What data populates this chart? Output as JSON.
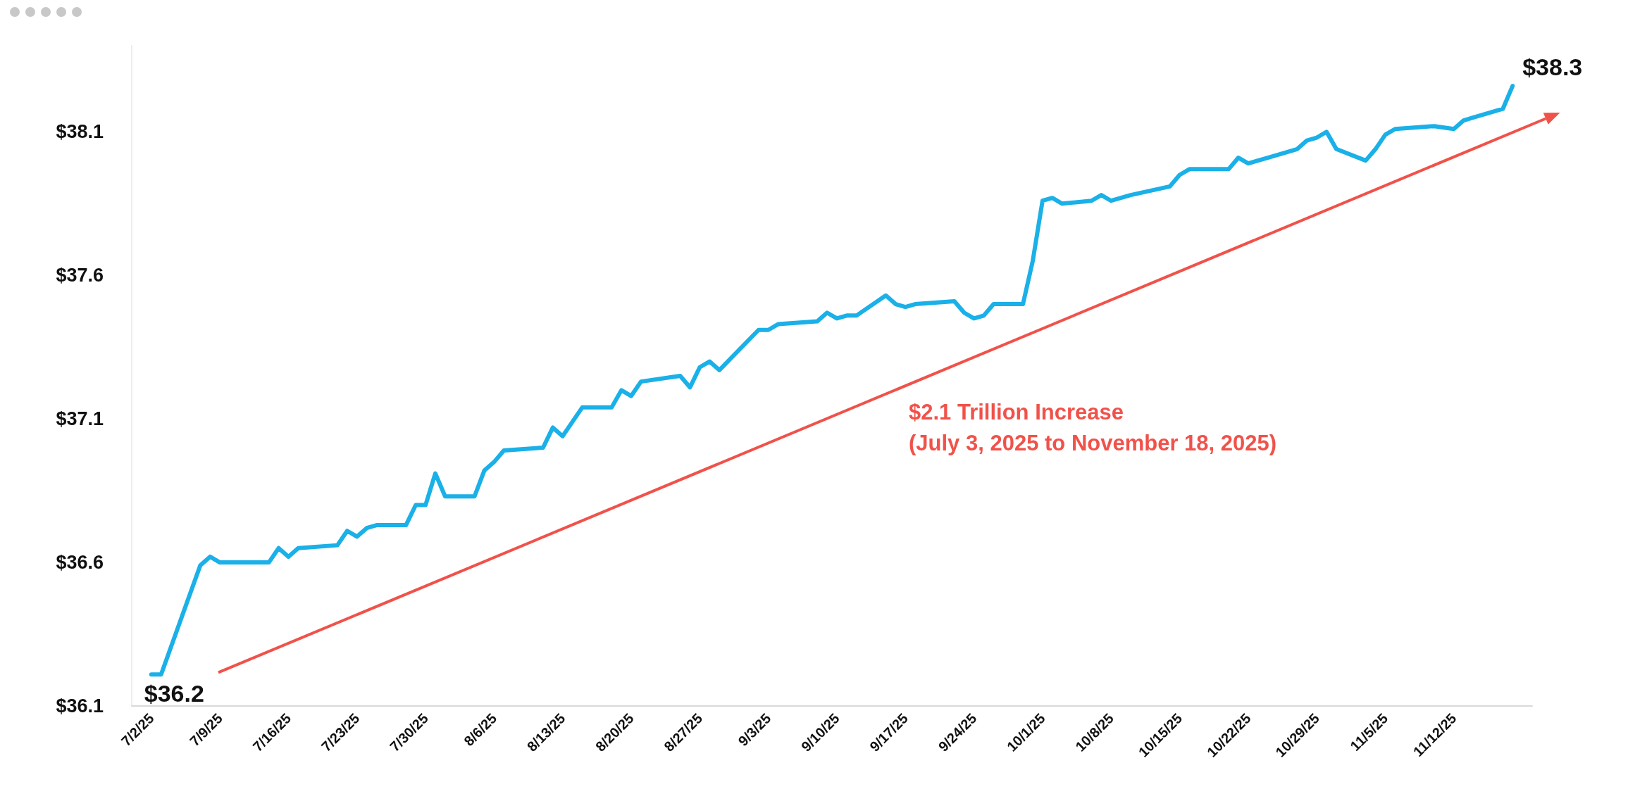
{
  "chart_data": {
    "type": "line",
    "x": [
      "2025-07-02",
      "2025-07-03",
      "2025-07-07",
      "2025-07-08",
      "2025-07-09",
      "2025-07-14",
      "2025-07-15",
      "2025-07-16",
      "2025-07-17",
      "2025-07-21",
      "2025-07-22",
      "2025-07-23",
      "2025-07-24",
      "2025-07-25",
      "2025-07-28",
      "2025-07-29",
      "2025-07-30",
      "2025-07-31",
      "2025-08-01",
      "2025-08-04",
      "2025-08-05",
      "2025-08-06",
      "2025-08-07",
      "2025-08-11",
      "2025-08-12",
      "2025-08-13",
      "2025-08-15",
      "2025-08-18",
      "2025-08-19",
      "2025-08-20",
      "2025-08-21",
      "2025-08-25",
      "2025-08-26",
      "2025-08-27",
      "2025-08-28",
      "2025-08-29",
      "2025-09-02",
      "2025-09-03",
      "2025-09-04",
      "2025-09-08",
      "2025-09-09",
      "2025-09-10",
      "2025-09-11",
      "2025-09-12",
      "2025-09-15",
      "2025-09-16",
      "2025-09-17",
      "2025-09-18",
      "2025-09-22",
      "2025-09-23",
      "2025-09-24",
      "2025-09-25",
      "2025-09-26",
      "2025-09-29",
      "2025-09-30",
      "2025-10-01",
      "2025-10-02",
      "2025-10-03",
      "2025-10-06",
      "2025-10-07",
      "2025-10-08",
      "2025-10-09",
      "2025-10-10",
      "2025-10-14",
      "2025-10-15",
      "2025-10-16",
      "2025-10-20",
      "2025-10-21",
      "2025-10-22",
      "2025-10-23",
      "2025-10-24",
      "2025-10-27",
      "2025-10-28",
      "2025-10-29",
      "2025-10-30",
      "2025-10-31",
      "2025-11-03",
      "2025-11-04",
      "2025-11-05",
      "2025-11-06",
      "2025-11-10",
      "2025-11-12",
      "2025-11-13",
      "2025-11-14",
      "2025-11-17",
      "2025-11-18"
    ],
    "series": [
      {
        "color": "#1ab0e8",
        "values": [
          36.21,
          36.21,
          36.59,
          36.62,
          36.6,
          36.6,
          36.65,
          36.62,
          36.65,
          36.66,
          36.71,
          36.69,
          36.72,
          36.73,
          36.73,
          36.8,
          36.8,
          36.91,
          36.83,
          36.83,
          36.92,
          36.95,
          36.99,
          37.0,
          37.07,
          37.04,
          37.14,
          37.14,
          37.2,
          37.18,
          37.23,
          37.25,
          37.21,
          37.28,
          37.3,
          37.27,
          37.41,
          37.41,
          37.43,
          37.44,
          37.47,
          37.45,
          37.46,
          37.46,
          37.53,
          37.5,
          37.49,
          37.5,
          37.51,
          37.47,
          37.45,
          37.46,
          37.5,
          37.5,
          37.65,
          37.86,
          37.87,
          37.85,
          37.86,
          37.88,
          37.86,
          37.87,
          37.88,
          37.91,
          37.95,
          37.97,
          37.97,
          38.01,
          37.99,
          38.0,
          38.01,
          38.04,
          38.07,
          38.08,
          38.1,
          38.04,
          38.0,
          38.04,
          38.09,
          38.11,
          38.12,
          38.11,
          38.14,
          38.15,
          38.18,
          38.26
        ]
      }
    ],
    "xlim": [
      "2025-06-30",
      "2025-11-20"
    ],
    "xticks": [
      {
        "value": "2025-07-02",
        "label": "7/2/25"
      },
      {
        "value": "2025-07-09",
        "label": "7/9/25"
      },
      {
        "value": "2025-07-16",
        "label": "7/16/25"
      },
      {
        "value": "2025-07-23",
        "label": "7/23/25"
      },
      {
        "value": "2025-07-30",
        "label": "7/30/25"
      },
      {
        "value": "2025-08-06",
        "label": "8/6/25"
      },
      {
        "value": "2025-08-13",
        "label": "8/13/25"
      },
      {
        "value": "2025-08-20",
        "label": "8/20/25"
      },
      {
        "value": "2025-08-27",
        "label": "8/27/25"
      },
      {
        "value": "2025-09-03",
        "label": "9/3/25"
      },
      {
        "value": "2025-09-10",
        "label": "9/10/25"
      },
      {
        "value": "2025-09-17",
        "label": "9/17/25"
      },
      {
        "value": "2025-09-24",
        "label": "9/24/25"
      },
      {
        "value": "2025-10-01",
        "label": "10/1/25"
      },
      {
        "value": "2025-10-08",
        "label": "10/8/25"
      },
      {
        "value": "2025-10-15",
        "label": "10/15/25"
      },
      {
        "value": "2025-10-22",
        "label": "10/22/25"
      },
      {
        "value": "2025-10-29",
        "label": "10/29/25"
      },
      {
        "value": "2025-11-05",
        "label": "11/5/25"
      },
      {
        "value": "2025-11-12",
        "label": "11/12/25"
      }
    ],
    "yticks": [
      {
        "value": 36.1,
        "label": "$36.1"
      },
      {
        "value": 36.6,
        "label": "$36.6"
      },
      {
        "value": 37.1,
        "label": "$37.1"
      },
      {
        "value": 37.6,
        "label": "$37.6"
      },
      {
        "value": 38.1,
        "label": "$38.1"
      }
    ],
    "ylim": [
      36.1,
      38.4
    ],
    "grid": false,
    "marker": "none",
    "line_style": "solid",
    "annotations": [
      {
        "text": "$36.2",
        "x": "2025-07-02",
        "y": 36.21
      },
      {
        "text": "$38.3",
        "x": "2025-11-18",
        "y": 38.26
      },
      "$2.1 Trillion Increase\n(July 3, 2025 to November 18, 2025)"
    ]
  }
}
